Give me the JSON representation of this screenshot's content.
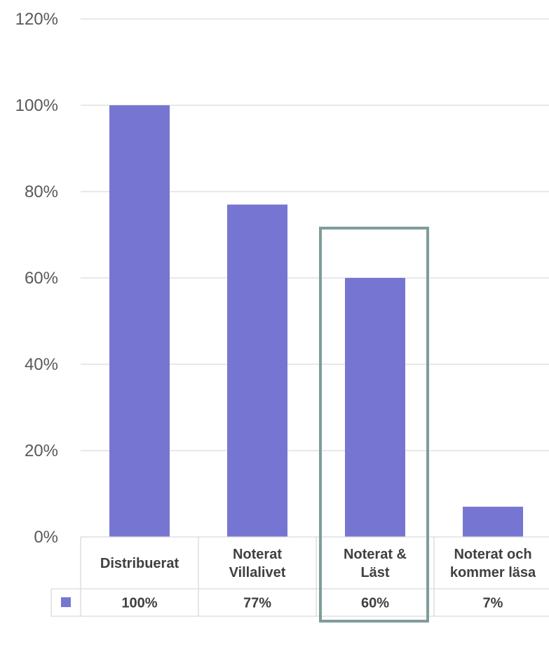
{
  "chart_data": {
    "type": "bar",
    "categories": [
      [
        "Distribuerat"
      ],
      [
        "Noterat",
        "Villalivet"
      ],
      [
        "Noterat &",
        "Läst"
      ],
      [
        "Noterat och",
        "kommer läsa"
      ]
    ],
    "values": [
      100,
      77,
      60,
      7
    ],
    "value_labels": [
      "100%",
      "77%",
      "60%",
      "7%"
    ],
    "yticks": [
      "0%",
      "20%",
      "40%",
      "60%",
      "80%",
      "100%",
      "120%"
    ],
    "ylim": [
      0,
      120
    ],
    "grid": true,
    "legend": "data-table",
    "highlight_index": 2,
    "colors": {
      "bar": "#7676d2",
      "grid": "#d9d9d9",
      "table_border": "#d9d9d9",
      "highlight": "#7f9c9c"
    }
  }
}
